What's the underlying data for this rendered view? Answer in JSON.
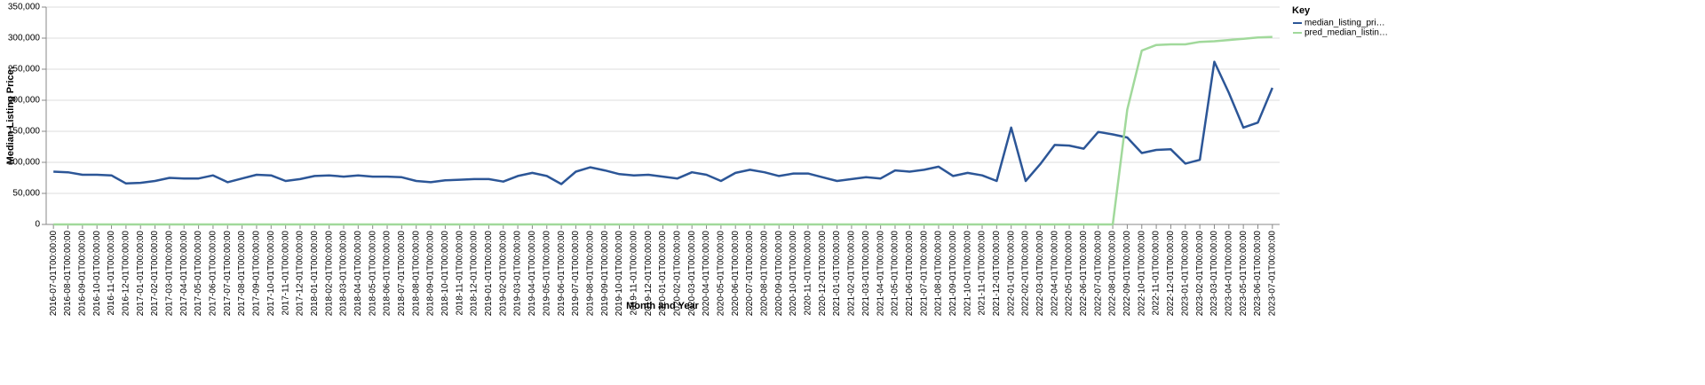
{
  "chart_data": {
    "type": "line",
    "x_label": "Month and Year",
    "y_label": "Median Listing Price:",
    "legend_title": "Key",
    "legend_position": "right",
    "grid": true,
    "categories": [
      "2016-07-01T00:00:00",
      "2016-08-01T00:00:00",
      "2016-09-01T00:00:00",
      "2016-10-01T00:00:00",
      "2016-11-01T00:00:00",
      "2016-12-01T00:00:00",
      "2017-01-01T00:00:00",
      "2017-02-01T00:00:00",
      "2017-03-01T00:00:00",
      "2017-04-01T00:00:00",
      "2017-05-01T00:00:00",
      "2017-06-01T00:00:00",
      "2017-07-01T00:00:00",
      "2017-08-01T00:00:00",
      "2017-09-01T00:00:00",
      "2017-10-01T00:00:00",
      "2017-11-01T00:00:00",
      "2017-12-01T00:00:00",
      "2018-01-01T00:00:00",
      "2018-02-01T00:00:00",
      "2018-03-01T00:00:00",
      "2018-04-01T00:00:00",
      "2018-05-01T00:00:00",
      "2018-06-01T00:00:00",
      "2018-07-01T00:00:00",
      "2018-08-01T00:00:00",
      "2018-09-01T00:00:00",
      "2018-10-01T00:00:00",
      "2018-11-01T00:00:00",
      "2018-12-01T00:00:00",
      "2019-01-01T00:00:00",
      "2019-02-01T00:00:00",
      "2019-03-01T00:00:00",
      "2019-04-01T00:00:00",
      "2019-05-01T00:00:00",
      "2019-06-01T00:00:00",
      "2019-07-01T00:00:00",
      "2019-08-01T00:00:00",
      "2019-09-01T00:00:00",
      "2019-10-01T00:00:00",
      "2019-11-01T00:00:00",
      "2019-12-01T00:00:00",
      "2020-01-01T00:00:00",
      "2020-02-01T00:00:00",
      "2020-03-01T00:00:00",
      "2020-04-01T00:00:00",
      "2020-05-01T00:00:00",
      "2020-06-01T00:00:00",
      "2020-07-01T00:00:00",
      "2020-08-01T00:00:00",
      "2020-09-01T00:00:00",
      "2020-10-01T00:00:00",
      "2020-11-01T00:00:00",
      "2020-12-01T00:00:00",
      "2021-01-01T00:00:00",
      "2021-02-01T00:00:00",
      "2021-03-01T00:00:00",
      "2021-04-01T00:00:00",
      "2021-05-01T00:00:00",
      "2021-06-01T00:00:00",
      "2021-07-01T00:00:00",
      "2021-08-01T00:00:00",
      "2021-09-01T00:00:00",
      "2021-10-01T00:00:00",
      "2021-11-01T00:00:00",
      "2021-12-01T00:00:00",
      "2022-01-01T00:00:00",
      "2022-02-01T00:00:00",
      "2022-03-01T00:00:00",
      "2022-04-01T00:00:00",
      "2022-05-01T00:00:00",
      "2022-06-01T00:00:00",
      "2022-07-01T00:00:00",
      "2022-08-01T00:00:00",
      "2022-09-01T00:00:00",
      "2022-10-01T00:00:00",
      "2022-11-01T00:00:00",
      "2022-12-01T00:00:00",
      "2023-01-01T00:00:00",
      "2023-02-01T00:00:00",
      "2023-03-01T00:00:00",
      "2023-04-01T00:00:00",
      "2023-05-01T00:00:00",
      "2023-06-01T00:00:00",
      "2023-07-01T00:00:00"
    ],
    "series": [
      {
        "name": "median_listing_pri…",
        "color": "#2c5697",
        "values": [
          85000,
          84000,
          80000,
          80000,
          79000,
          66000,
          67000,
          70000,
          75000,
          74000,
          74000,
          79000,
          68000,
          74000,
          80000,
          79000,
          70000,
          73000,
          78000,
          79000,
          77000,
          79000,
          77000,
          77000,
          76000,
          70000,
          68000,
          71000,
          72000,
          73000,
          73000,
          69000,
          78000,
          83000,
          78000,
          65000,
          85000,
          92000,
          87000,
          81000,
          79000,
          80000,
          77000,
          74000,
          84000,
          80000,
          70000,
          83000,
          88000,
          84000,
          78000,
          82000,
          82000,
          76000,
          70000,
          73000,
          76000,
          74000,
          87000,
          85000,
          88000,
          93000,
          78000,
          83000,
          79000,
          70000,
          156000,
          70000,
          97000,
          128000,
          127000,
          122000,
          149000,
          145000,
          140000,
          115000,
          120000,
          121000,
          98000,
          104000,
          262000,
          212000,
          156000,
          164000,
          220000
        ]
      },
      {
        "name": "pred_median_listin…",
        "color": "#a1d99b",
        "values": [
          0,
          0,
          0,
          0,
          0,
          0,
          0,
          0,
          0,
          0,
          0,
          0,
          0,
          0,
          0,
          0,
          0,
          0,
          0,
          0,
          0,
          0,
          0,
          0,
          0,
          0,
          0,
          0,
          0,
          0,
          0,
          0,
          0,
          0,
          0,
          0,
          0,
          0,
          0,
          0,
          0,
          0,
          0,
          0,
          0,
          0,
          0,
          0,
          0,
          0,
          0,
          0,
          0,
          0,
          0,
          0,
          0,
          0,
          0,
          0,
          0,
          0,
          0,
          0,
          0,
          0,
          0,
          0,
          0,
          0,
          0,
          0,
          0,
          0,
          185000,
          280000,
          289000,
          290000,
          290000,
          294000,
          295000,
          297000,
          299000,
          301000,
          302000
        ]
      }
    ],
    "ylim": [
      0,
      350000
    ],
    "yticks": [
      0,
      {
        "value": 50000,
        "label": "50,000"
      },
      {
        "value": 100000,
        "label": "100,000"
      },
      {
        "value": 150000,
        "label": "150,000"
      },
      {
        "value": 200000,
        "label": "200,000"
      },
      {
        "value": 250000,
        "label": "250,000"
      },
      {
        "value": 300000,
        "label": "300,000"
      },
      {
        "value": 350000,
        "label": "350,000"
      }
    ]
  }
}
